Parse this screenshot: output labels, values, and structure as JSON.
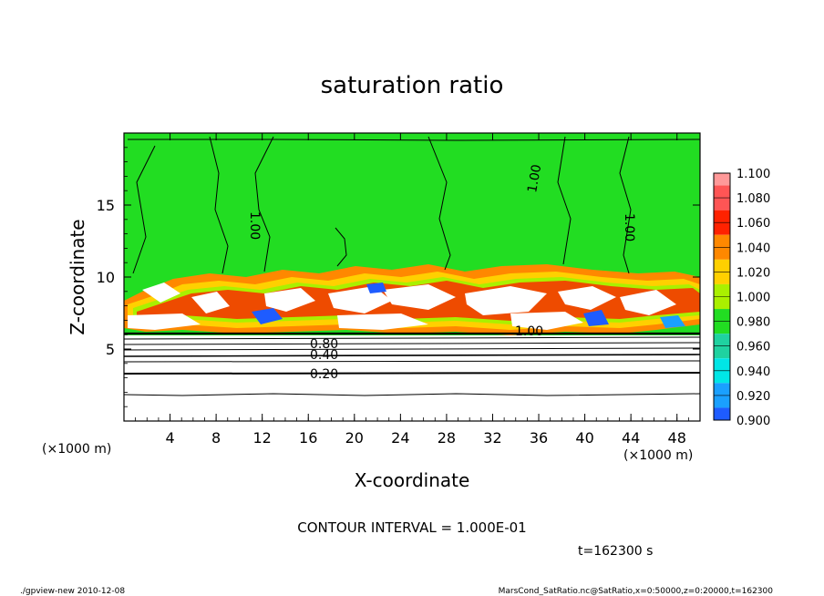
{
  "chart_data": {
    "type": "heatmap",
    "title": "saturation ratio",
    "xlabel": "X-coordinate",
    "ylabel": "Z-coordinate",
    "x_unit": "(×1000 m)",
    "z_unit": "(×1000 m)",
    "xlim": [
      0,
      50
    ],
    "ylim": [
      0,
      20
    ],
    "x_ticks": [
      "4",
      "8",
      "12",
      "16",
      "20",
      "24",
      "28",
      "32",
      "36",
      "40",
      "44",
      "48"
    ],
    "y_ticks": [
      "5",
      "10",
      "15"
    ],
    "colorbar": {
      "levels": [
        "0.900",
        "0.920",
        "0.940",
        "0.960",
        "0.980",
        "1.000",
        "1.020",
        "1.040",
        "1.060",
        "1.080",
        "1.100"
      ],
      "colors": [
        "#6a0da8",
        "#0b0bb0",
        "#1e5cff",
        "#1aa0ff",
        "#00e6e6",
        "#1fd2a0",
        "#22dd22",
        "#aaf000",
        "#ffd000",
        "#ff8800",
        "#ff2200",
        "#ff5555",
        "#ff9999"
      ]
    },
    "contour_labels": [
      "1.00",
      "1.00",
      "1.00",
      "1.00",
      "0.80",
      "0.40",
      "0.20"
    ],
    "contour_interval": "CONTOUR INTERVAL = 1.000E-01",
    "time_label": "t=162300 s"
  },
  "footer": {
    "left": "./gpview-new   2010-12-08",
    "right": "MarsCond_SatRatio.nc@SatRatio,x=0:50000,z=0:20000,t=162300"
  },
  "colors": {
    "background": "#22dd22",
    "subsaturated": "#ffffff"
  }
}
